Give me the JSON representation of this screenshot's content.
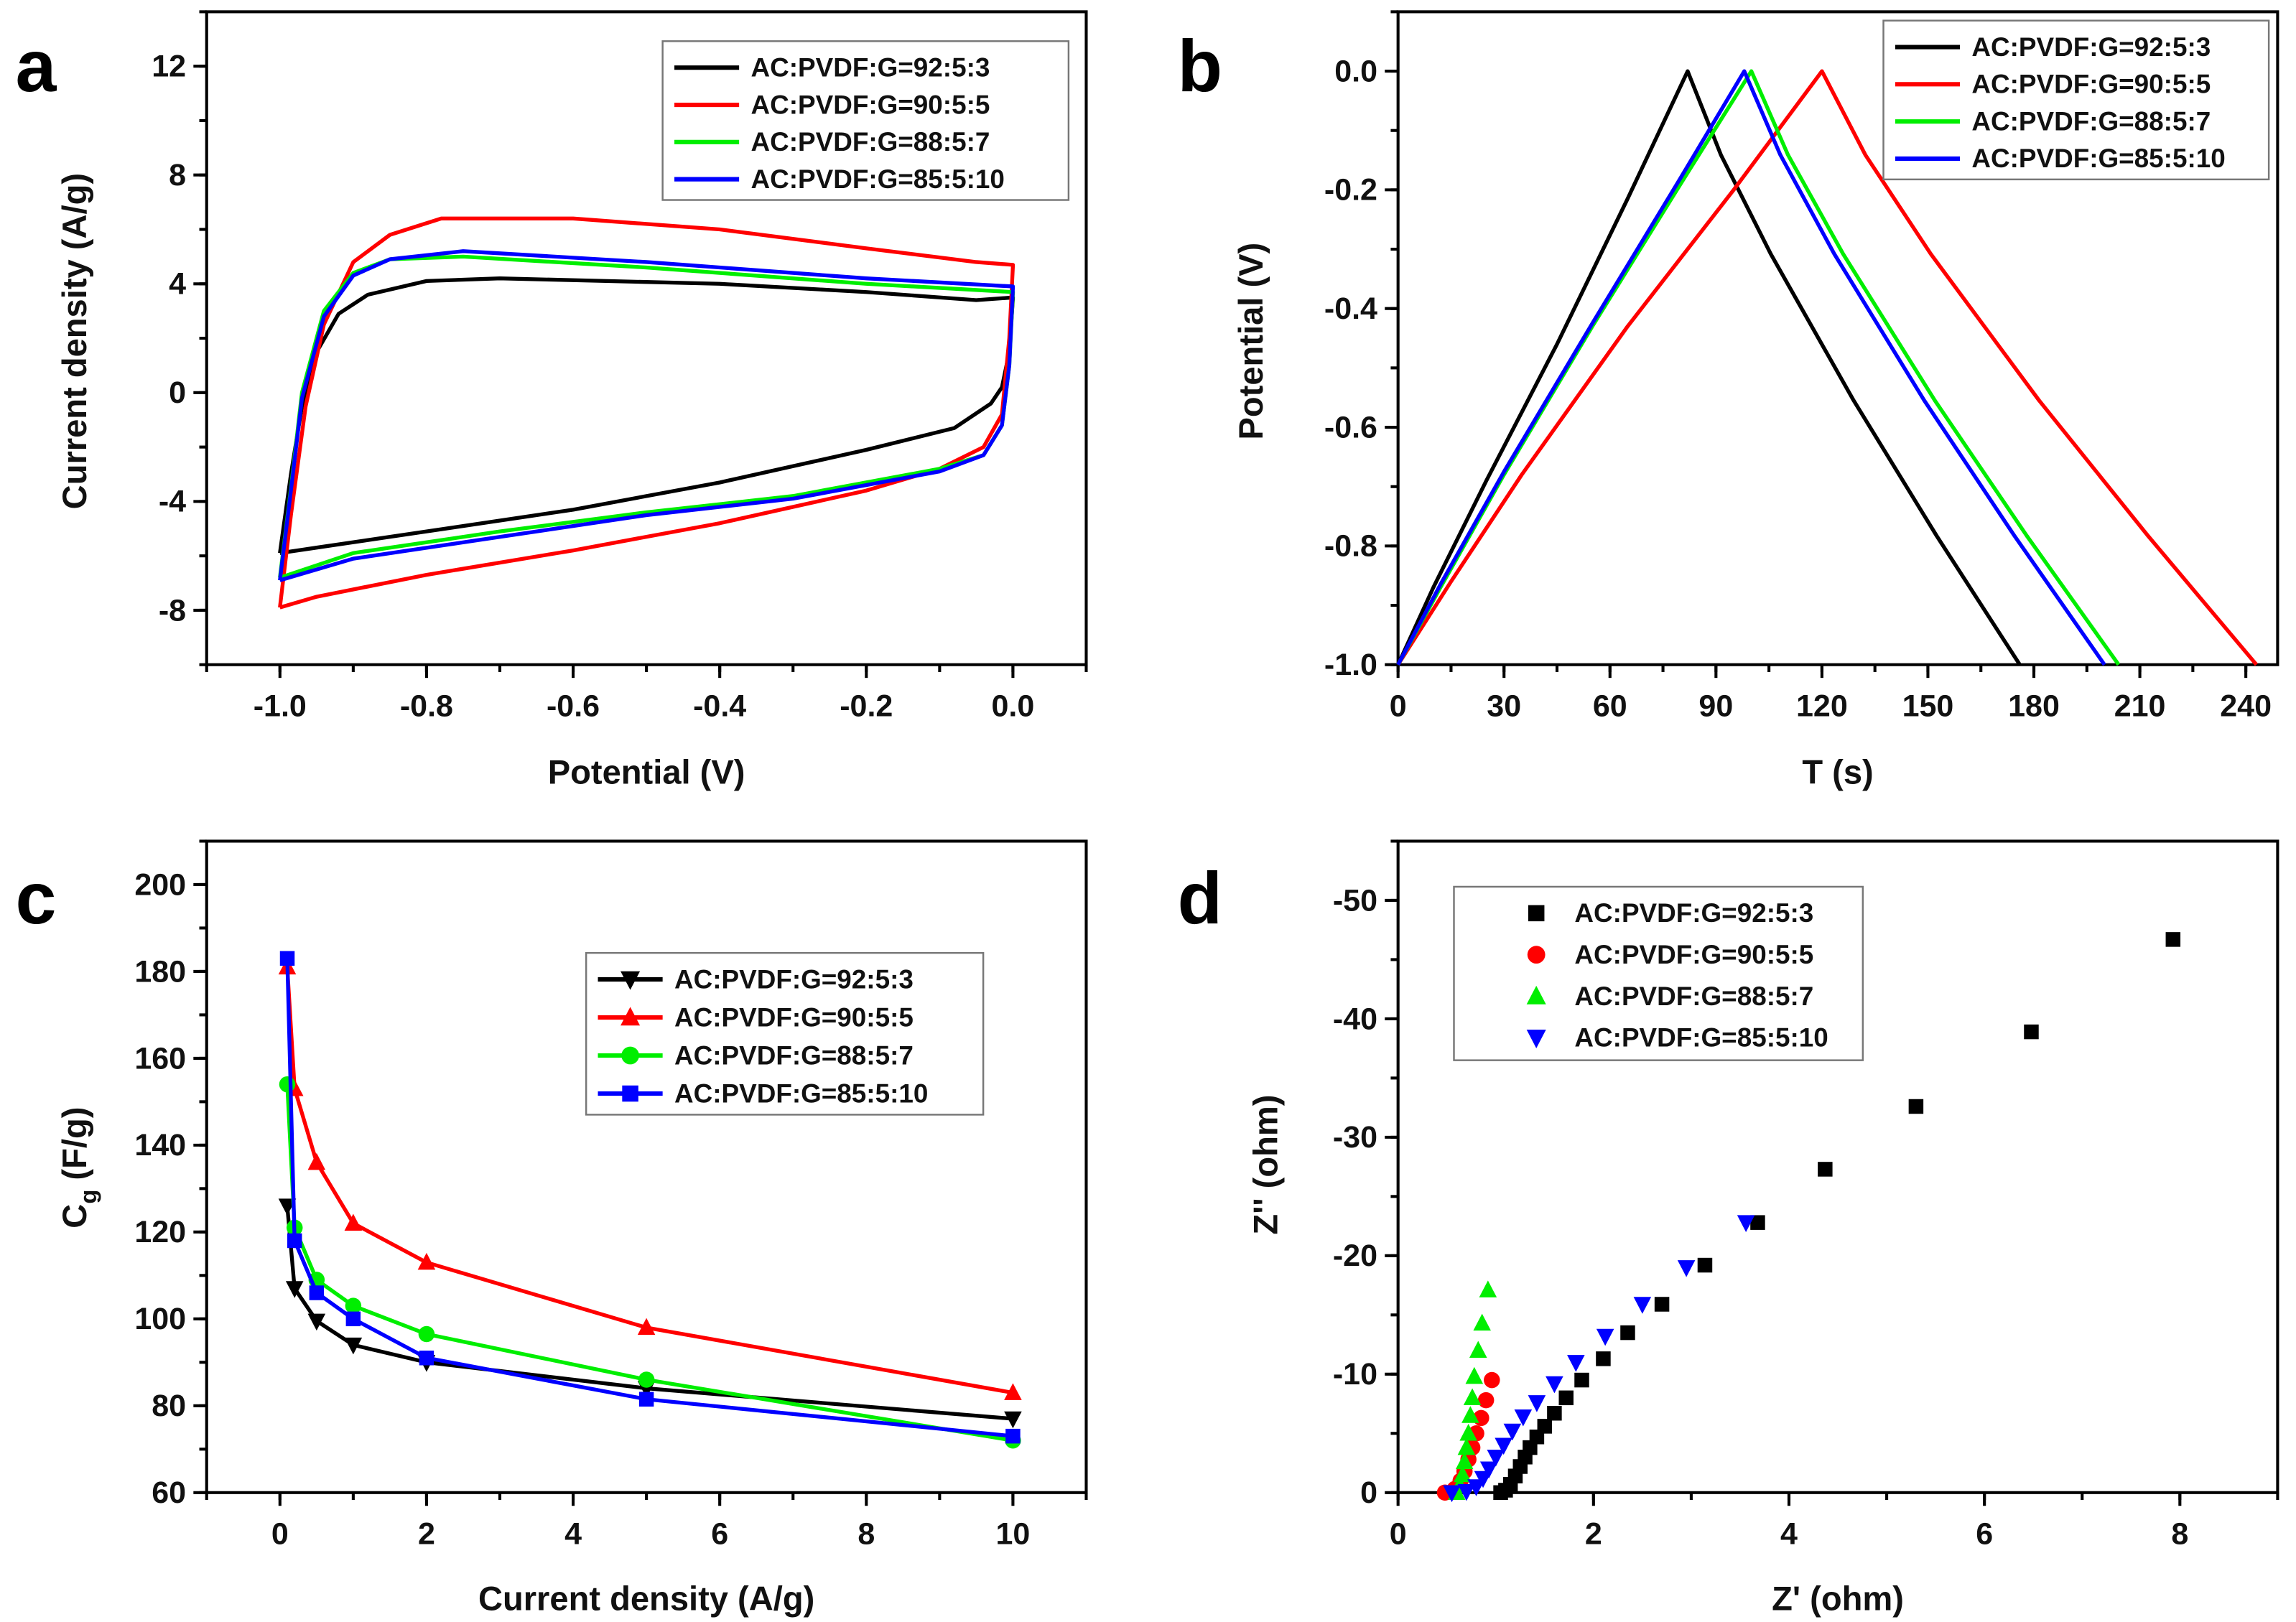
{
  "chart_data": [
    {
      "panel": "a",
      "type": "line",
      "xlabel": "Potential (V)",
      "ylabel": "Current density (A/g)",
      "xlim": [
        -1.1,
        0.1
      ],
      "ylim": [
        -10,
        14
      ],
      "xticks": [
        -1.0,
        -0.8,
        -0.6,
        -0.4,
        -0.2,
        0.0
      ],
      "xtick_labels": [
        "-1.0",
        "-0.8",
        "-0.6",
        "-0.4",
        "-0.2",
        "0.0"
      ],
      "xminor": 0.1,
      "yticks": [
        -8,
        -4,
        0,
        4,
        8,
        12
      ],
      "ytick_labels": [
        "-8",
        "-4",
        "0",
        "4",
        "8",
        "12"
      ],
      "yminor": 2,
      "legend": "top-right",
      "legend_style": "line",
      "series": [
        {
          "name": "AC:PVDF:G=92:5:3",
          "color": "#000000",
          "points": [
            [
              -1,
              -5.9
            ],
            [
              -0.985,
              -3
            ],
            [
              -0.97,
              -0.5
            ],
            [
              -0.95,
              1.5
            ],
            [
              -0.92,
              2.9
            ],
            [
              -0.88,
              3.6
            ],
            [
              -0.8,
              4.1
            ],
            [
              -0.7,
              4.2
            ],
            [
              -0.4,
              4.0
            ],
            [
              -0.2,
              3.7
            ],
            [
              -0.05,
              3.4
            ],
            [
              0,
              3.5
            ],
            [
              -0.005,
              1.5
            ],
            [
              -0.015,
              0.2
            ],
            [
              -0.03,
              -0.4
            ],
            [
              -0.08,
              -1.3
            ],
            [
              -0.2,
              -2.1
            ],
            [
              -0.4,
              -3.3
            ],
            [
              -0.6,
              -4.3
            ],
            [
              -0.8,
              -5.1
            ],
            [
              -0.95,
              -5.7
            ],
            [
              -1,
              -5.9
            ]
          ]
        },
        {
          "name": "AC:PVDF:G=90:5:5",
          "color": "#ff0000",
          "points": [
            [
              -1,
              -7.9
            ],
            [
              -0.985,
              -4.5
            ],
            [
              -0.965,
              -0.5
            ],
            [
              -0.94,
              2.5
            ],
            [
              -0.9,
              4.8
            ],
            [
              -0.85,
              5.8
            ],
            [
              -0.78,
              6.4
            ],
            [
              -0.6,
              6.4
            ],
            [
              -0.4,
              6.0
            ],
            [
              -0.2,
              5.3
            ],
            [
              -0.05,
              4.8
            ],
            [
              0,
              4.7
            ],
            [
              -0.005,
              2
            ],
            [
              -0.015,
              -0.8
            ],
            [
              -0.04,
              -2.0
            ],
            [
              -0.1,
              -2.8
            ],
            [
              -0.2,
              -3.6
            ],
            [
              -0.4,
              -4.8
            ],
            [
              -0.6,
              -5.8
            ],
            [
              -0.8,
              -6.7
            ],
            [
              -0.95,
              -7.5
            ],
            [
              -1,
              -7.9
            ]
          ]
        },
        {
          "name": "AC:PVDF:G=88:5:7",
          "color": "#00ee00",
          "points": [
            [
              -1,
              -6.8
            ],
            [
              -0.985,
              -3.5
            ],
            [
              -0.97,
              0
            ],
            [
              -0.94,
              3.0
            ],
            [
              -0.9,
              4.4
            ],
            [
              -0.85,
              4.9
            ],
            [
              -0.75,
              5.0
            ],
            [
              -0.5,
              4.6
            ],
            [
              -0.2,
              4.0
            ],
            [
              0,
              3.7
            ],
            [
              -0.005,
              1
            ],
            [
              -0.015,
              -1.2
            ],
            [
              -0.04,
              -2.3
            ],
            [
              -0.1,
              -2.8
            ],
            [
              -0.3,
              -3.8
            ],
            [
              -0.5,
              -4.4
            ],
            [
              -0.7,
              -5.1
            ],
            [
              -0.9,
              -5.9
            ],
            [
              -1,
              -6.8
            ]
          ]
        },
        {
          "name": "AC:PVDF:G=85:5:10",
          "color": "#0000ff",
          "points": [
            [
              -1,
              -6.9
            ],
            [
              -0.985,
              -3.6
            ],
            [
              -0.97,
              -0.2
            ],
            [
              -0.94,
              2.8
            ],
            [
              -0.9,
              4.3
            ],
            [
              -0.85,
              4.9
            ],
            [
              -0.75,
              5.2
            ],
            [
              -0.5,
              4.8
            ],
            [
              -0.2,
              4.2
            ],
            [
              0,
              3.9
            ],
            [
              -0.005,
              1
            ],
            [
              -0.015,
              -1.2
            ],
            [
              -0.04,
              -2.3
            ],
            [
              -0.1,
              -2.9
            ],
            [
              -0.3,
              -3.9
            ],
            [
              -0.5,
              -4.5
            ],
            [
              -0.7,
              -5.3
            ],
            [
              -0.9,
              -6.1
            ],
            [
              -1,
              -6.9
            ]
          ]
        }
      ]
    },
    {
      "panel": "b",
      "type": "line",
      "xlabel": "T (s)",
      "ylabel": "Potential (V)",
      "xlim": [
        0,
        249
      ],
      "ylim": [
        -1.0,
        0.1
      ],
      "xticks": [
        0,
        30,
        60,
        90,
        120,
        150,
        180,
        210,
        240
      ],
      "xtick_labels": [
        "0",
        "30",
        "60",
        "90",
        "120",
        "150",
        "180",
        "210",
        "240"
      ],
      "xminor": 15,
      "yticks": [
        0.0,
        -0.2,
        -0.4,
        -0.6,
        -0.8,
        -1.0
      ],
      "ytick_labels": [
        "0.0",
        "-0.2",
        "-0.4",
        "-0.6",
        "-0.8",
        "-1.0"
      ],
      "yminor": 0.1,
      "legend": "top-right",
      "legend_style": "line",
      "series": [
        {
          "name": "AC:PVDF:G=92:5:3",
          "color": "#000000",
          "points": [
            [
              0,
              -1
            ],
            [
              10,
              -0.87
            ],
            [
              25,
              -0.69
            ],
            [
              45,
              -0.46
            ],
            [
              65,
              -0.215
            ],
            [
              82,
              0
            ],
            [
              91.4,
              -0.141
            ],
            [
              105.5,
              -0.308
            ],
            [
              129,
              -0.555
            ],
            [
              152.5,
              -0.783
            ],
            [
              176,
              -1
            ]
          ]
        },
        {
          "name": "AC:PVDF:G=90:5:5",
          "color": "#ff0000",
          "points": [
            [
              0,
              -1
            ],
            [
              15,
              -0.86
            ],
            [
              35,
              -0.68
            ],
            [
              65,
              -0.43
            ],
            [
              95,
              -0.2
            ],
            [
              120,
              0
            ],
            [
              132.3,
              -0.141
            ],
            [
              150.8,
              -0.308
            ],
            [
              181.5,
              -0.555
            ],
            [
              212.3,
              -0.783
            ],
            [
              243,
              -1
            ]
          ]
        },
        {
          "name": "AC:PVDF:G=88:5:7",
          "color": "#00ee00",
          "points": [
            [
              0,
              -1
            ],
            [
              12,
              -0.87
            ],
            [
              30,
              -0.68
            ],
            [
              55,
              -0.43
            ],
            [
              80,
              -0.19
            ],
            [
              100,
              0
            ],
            [
              110.4,
              -0.141
            ],
            [
              126,
              -0.308
            ],
            [
              152,
              -0.555
            ],
            [
              178,
              -0.783
            ],
            [
              204,
              -1
            ]
          ]
        },
        {
          "name": "AC:PVDF:G=85:5:10",
          "color": "#0000ff",
          "points": [
            [
              0,
              -1
            ],
            [
              12,
              -0.865
            ],
            [
              30,
              -0.675
            ],
            [
              55,
              -0.425
            ],
            [
              80,
              -0.18
            ],
            [
              98,
              0
            ],
            [
              108.2,
              -0.141
            ],
            [
              123.5,
              -0.308
            ],
            [
              149,
              -0.555
            ],
            [
              174.5,
              -0.783
            ],
            [
              200,
              -1
            ]
          ]
        }
      ]
    },
    {
      "panel": "c",
      "type": "line",
      "xlabel": "Current density (A/g)",
      "ylabel": "C",
      "ylabel_sub": "g",
      "ylabel_unit": " (F/g)",
      "xlim": [
        -1,
        11
      ],
      "ylim": [
        60,
        210
      ],
      "xticks": [
        0,
        2,
        4,
        6,
        8,
        10
      ],
      "xtick_labels": [
        "0",
        "2",
        "4",
        "6",
        "8",
        "10"
      ],
      "xminor": 1,
      "yticks": [
        60,
        80,
        100,
        120,
        140,
        160,
        180,
        200
      ],
      "ytick_labels": [
        "60",
        "80",
        "100",
        "120",
        "140",
        "160",
        "180",
        "200"
      ],
      "yminor": 10,
      "legend": "upper-right",
      "legend_style": "line-marker",
      "x": [
        0.1,
        0.2,
        0.5,
        1,
        2,
        5,
        10
      ],
      "series": [
        {
          "name": "AC:PVDF:G=92:5:3",
          "color": "#000000",
          "marker": "triangle-down",
          "values": [
            126,
            107,
            99.5,
            94,
            90,
            84,
            77
          ]
        },
        {
          "name": "AC:PVDF:G=90:5:5",
          "color": "#ff0000",
          "marker": "triangle-up",
          "values": [
            181,
            153,
            136,
            122,
            113,
            98,
            83
          ]
        },
        {
          "name": "AC:PVDF:G=88:5:7",
          "color": "#00ee00",
          "marker": "circle",
          "values": [
            154,
            121,
            109,
            103,
            96.5,
            86,
            72
          ]
        },
        {
          "name": "AC:PVDF:G=85:5:10",
          "color": "#0000ff",
          "marker": "square",
          "values": [
            183,
            118,
            106,
            100,
            91,
            81.5,
            73
          ]
        }
      ]
    },
    {
      "panel": "d",
      "type": "scatter",
      "xlabel": "Z' (ohm)",
      "ylabel": "Z'' (ohm)",
      "xlim": [
        0,
        9
      ],
      "ylim": [
        0,
        -55
      ],
      "xticks": [
        0,
        2,
        4,
        6,
        8
      ],
      "xtick_labels": [
        "0",
        "2",
        "4",
        "6",
        "8"
      ],
      "xminor": 1,
      "yticks": [
        0,
        -10,
        -20,
        -30,
        -40,
        -50
      ],
      "ytick_labels": [
        "0",
        "-10",
        "-20",
        "-30",
        "-40",
        "-50"
      ],
      "yminor": 5,
      "legend": "top-left",
      "legend_style": "marker",
      "series": [
        {
          "name": "AC:PVDF:G=92:5:3",
          "color": "#000000",
          "marker": "square",
          "points": [
            [
              7.93,
              -46.7
            ],
            [
              6.48,
              -38.9
            ],
            [
              5.3,
              -32.6
            ],
            [
              4.37,
              -27.3
            ],
            [
              3.68,
              -22.8
            ],
            [
              3.14,
              -19.2
            ],
            [
              2.7,
              -15.9
            ],
            [
              2.35,
              -13.5
            ],
            [
              2.1,
              -11.3
            ],
            [
              1.88,
              -9.5
            ],
            [
              1.72,
              -8.0
            ],
            [
              1.6,
              -6.7
            ],
            [
              1.5,
              -5.6
            ],
            [
              1.42,
              -4.7
            ],
            [
              1.35,
              -3.8
            ],
            [
              1.3,
              -3.0
            ],
            [
              1.25,
              -2.2
            ],
            [
              1.2,
              -1.4
            ],
            [
              1.15,
              -0.7
            ],
            [
              1.1,
              -0.2
            ],
            [
              1.05,
              0
            ]
          ]
        },
        {
          "name": "AC:PVDF:G=90:5:5",
          "color": "#ff0000",
          "marker": "circle",
          "points": [
            [
              0.96,
              -9.5
            ],
            [
              0.9,
              -7.8
            ],
            [
              0.85,
              -6.3
            ],
            [
              0.8,
              -5
            ],
            [
              0.76,
              -3.8
            ],
            [
              0.72,
              -2.8
            ],
            [
              0.68,
              -1.8
            ],
            [
              0.64,
              -1
            ],
            [
              0.58,
              -0.3
            ],
            [
              0.48,
              0
            ]
          ]
        },
        {
          "name": "AC:PVDF:G=88:5:7",
          "color": "#00ee00",
          "marker": "triangle-up",
          "points": [
            [
              0.92,
              -17.1
            ],
            [
              0.86,
              -14.3
            ],
            [
              0.82,
              -12
            ],
            [
              0.78,
              -9.8
            ],
            [
              0.76,
              -8
            ],
            [
              0.74,
              -6.5
            ],
            [
              0.72,
              -5
            ],
            [
              0.7,
              -3.8
            ],
            [
              0.68,
              -2.6
            ],
            [
              0.66,
              -1.5
            ],
            [
              0.63,
              -0.6
            ],
            [
              0.6,
              0
            ]
          ]
        },
        {
          "name": "AC:PVDF:G=85:5:10",
          "color": "#0000ff",
          "marker": "triangle-down",
          "points": [
            [
              3.56,
              -22.8
            ],
            [
              2.95,
              -19
            ],
            [
              2.5,
              -15.9
            ],
            [
              2.12,
              -13.2
            ],
            [
              1.82,
              -11
            ],
            [
              1.6,
              -9.2
            ],
            [
              1.42,
              -7.6
            ],
            [
              1.28,
              -6.4
            ],
            [
              1.17,
              -5.2
            ],
            [
              1.08,
              -4
            ],
            [
              1.0,
              -3
            ],
            [
              0.93,
              -2
            ],
            [
              0.87,
              -1.2
            ],
            [
              0.8,
              -0.5
            ],
            [
              0.7,
              -0.1
            ],
            [
              0.55,
              0
            ]
          ]
        }
      ]
    }
  ]
}
